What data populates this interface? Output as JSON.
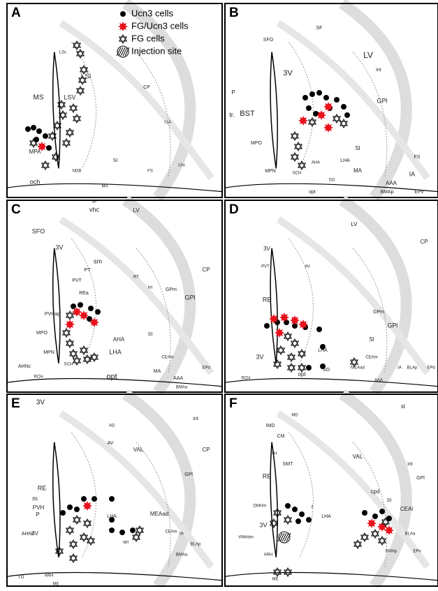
{
  "legend": {
    "items": [
      "Ucn3 cells",
      "FG/Ucn3 cells",
      "FG cells",
      "Injection site"
    ]
  },
  "panels": [
    {
      "letter": "A",
      "labels": [
        "MS",
        "LSi",
        "LSV",
        "LSc",
        "MPA",
        "och",
        "NDB",
        "SI",
        "MA",
        "FS",
        "EPd",
        "CLA",
        "CP"
      ]
    },
    {
      "letter": "B",
      "labels": [
        "SF",
        "SFO",
        "LV",
        "3V",
        "P",
        "tr.",
        "BST",
        "MPO",
        "MPN",
        "SCH",
        "AHA",
        "LHA",
        "GPl",
        "SI",
        "MA",
        "FS",
        "IA",
        "AAA",
        "BMAp",
        "EPv",
        "opt",
        "SO",
        "int"
      ]
    },
    {
      "letter": "C",
      "labels": [
        "vhc",
        "SF",
        "LV",
        "SFO",
        "3V",
        "PT",
        "sm",
        "PVT",
        "REa",
        "RT",
        "int",
        "GPm",
        "GPl",
        "CP",
        "PVHap",
        "MPO",
        "MPN",
        "AHNc",
        "RCH",
        "SCH",
        "AHA",
        "LHA",
        "SI",
        "opt",
        "MA",
        "CEAm",
        "AAA",
        "EPd",
        "BMAa"
      ]
    },
    {
      "letter": "D",
      "labels": [
        "LV",
        "3V",
        "CP",
        "PVT",
        "AV",
        "RE",
        "GPm",
        "GPl",
        "SI",
        "LHA",
        "3V",
        "RCH",
        "SO",
        "opt",
        "MEAad",
        "CEAm",
        "AAA",
        "IA",
        "BLAp",
        "EPd"
      ]
    },
    {
      "letter": "E",
      "labels": [
        "3V",
        "AD",
        "AV",
        "VAL",
        "CP",
        "int",
        "RE",
        "m",
        "PVH",
        "P",
        "AHNc",
        "3V",
        "TU",
        "ARH",
        "ME",
        "LHA",
        "MEAad",
        "GPl",
        "opt",
        "CEAm",
        "IA",
        "BLAp",
        "BMAa"
      ]
    },
    {
      "letter": "F",
      "labels": [
        "st",
        "MD",
        "IMD",
        "CM",
        "RH",
        "SMT",
        "RE",
        "VAL",
        "int",
        "GPl",
        "cpd",
        "SI",
        "CEAl",
        "DMHm",
        "f",
        "LHA",
        "3V",
        "VMHdm",
        "ARH",
        "ME",
        "BLAa",
        "BMAp",
        "EPv"
      ]
    }
  ]
}
